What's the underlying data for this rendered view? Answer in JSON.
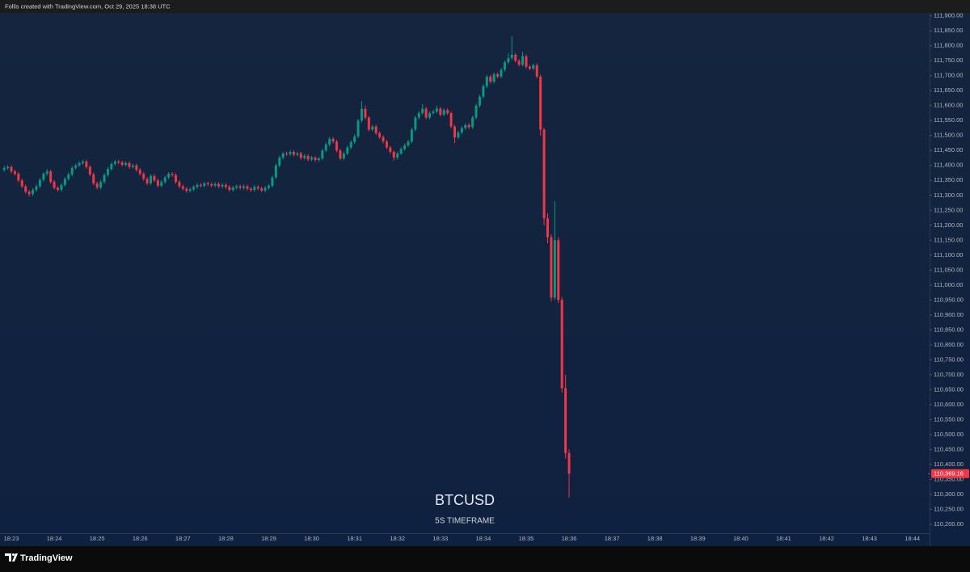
{
  "chart_data": {
    "type": "candlestick",
    "title": "Follis created with TradingView.com, Oct 29, 2025 18:38 UTC",
    "symbol": "BTCUSD",
    "subtitle": "5S TIMEFRAME",
    "brand": "TradingView",
    "up_color": "#089981",
    "down_color": "#f23645",
    "grid": false,
    "ylim": [
      110170,
      111910
    ],
    "yticks": [
      {
        "value": 110200,
        "label": "110,200.00"
      },
      {
        "value": 110250,
        "label": "110,250.00"
      },
      {
        "value": 110300,
        "label": "110,300.00"
      },
      {
        "value": 110350,
        "label": "110,350.00"
      },
      {
        "value": 110400,
        "label": "110,400.00"
      },
      {
        "value": 110450,
        "label": "110,450.00"
      },
      {
        "value": 110500,
        "label": "110,500.00"
      },
      {
        "value": 110550,
        "label": "110,550.00"
      },
      {
        "value": 110600,
        "label": "110,600.00"
      },
      {
        "value": 110650,
        "label": "110,650.00"
      },
      {
        "value": 110700,
        "label": "110,700.00"
      },
      {
        "value": 110750,
        "label": "110,750.00"
      },
      {
        "value": 110800,
        "label": "110,800.00"
      },
      {
        "value": 110850,
        "label": "110,850.00"
      },
      {
        "value": 110900,
        "label": "110,900.00"
      },
      {
        "value": 110950,
        "label": "110,950.00"
      },
      {
        "value": 111000,
        "label": "111,000.00"
      },
      {
        "value": 111050,
        "label": "111,050.00"
      },
      {
        "value": 111100,
        "label": "111,100.00"
      },
      {
        "value": 111150,
        "label": "111,150.00"
      },
      {
        "value": 111200,
        "label": "111,200.00"
      },
      {
        "value": 111250,
        "label": "111,250.00"
      },
      {
        "value": 111300,
        "label": "111,300.00"
      },
      {
        "value": 111350,
        "label": "111,350.00"
      },
      {
        "value": 111400,
        "label": "111,400.00"
      },
      {
        "value": 111450,
        "label": "111,450.00"
      },
      {
        "value": 111500,
        "label": "111,500.00"
      },
      {
        "value": 111550,
        "label": "111,550.00"
      },
      {
        "value": 111600,
        "label": "111,600.00"
      },
      {
        "value": 111650,
        "label": "111,650.00"
      },
      {
        "value": 111700,
        "label": "111,700.00"
      },
      {
        "value": 111750,
        "label": "111,750.00"
      },
      {
        "value": 111800,
        "label": "111,800.00"
      },
      {
        "value": 111850,
        "label": "111,850.00"
      },
      {
        "value": 111900,
        "label": "111,900.00"
      }
    ],
    "x_labels": [
      "18:23",
      "18:24",
      "18:25",
      "18:26",
      "18:27",
      "18:28",
      "18:29",
      "18:30",
      "18:31",
      "18:32",
      "18:33",
      "18:34",
      "18:35",
      "18:36",
      "18:37",
      "18:38",
      "18:39",
      "18:40",
      "18:41",
      "18:42",
      "18:43",
      "18:44"
    ],
    "last_price": {
      "value": 110369.16,
      "label": "110,369.16"
    },
    "ohlc": [
      [
        111385,
        111399,
        111379,
        111391
      ],
      [
        111391,
        111401,
        111386,
        111395
      ],
      [
        111395,
        111400,
        111374,
        111380
      ],
      [
        111380,
        111386,
        111366,
        111372
      ],
      [
        111372,
        111378,
        111344,
        111350
      ],
      [
        111350,
        111356,
        111324,
        111330
      ],
      [
        111330,
        111336,
        111306,
        111312
      ],
      [
        111312,
        111318,
        111296,
        111304
      ],
      [
        111304,
        111324,
        111298,
        111318
      ],
      [
        111318,
        111336,
        111312,
        111330
      ],
      [
        111330,
        111358,
        111324,
        111352
      ],
      [
        111352,
        111378,
        111346,
        111372
      ],
      [
        111372,
        111388,
        111366,
        111380
      ],
      [
        111380,
        111386,
        111339,
        111345
      ],
      [
        111345,
        111351,
        111319,
        111325
      ],
      [
        111325,
        111331,
        111312,
        111318
      ],
      [
        111318,
        111341,
        111312,
        111335
      ],
      [
        111335,
        111361,
        111329,
        111355
      ],
      [
        111355,
        111376,
        111349,
        111370
      ],
      [
        111370,
        111398,
        111364,
        111392
      ],
      [
        111392,
        111406,
        111386,
        111400
      ],
      [
        111400,
        111414,
        111394,
        111408
      ],
      [
        111408,
        111419,
        111402,
        111413
      ],
      [
        111413,
        111419,
        111389,
        111395
      ],
      [
        111395,
        111401,
        111364,
        111370
      ],
      [
        111370,
        111376,
        111334,
        111340
      ],
      [
        111340,
        111346,
        111320,
        111326
      ],
      [
        111326,
        111351,
        111320,
        111345
      ],
      [
        111345,
        111374,
        111339,
        111368
      ],
      [
        111368,
        111394,
        111362,
        111388
      ],
      [
        111388,
        111411,
        111382,
        111405
      ],
      [
        111405,
        111419,
        111399,
        111413
      ],
      [
        111413,
        111419,
        111404,
        111410
      ],
      [
        111410,
        111416,
        111396,
        111402
      ],
      [
        111402,
        111414,
        111396,
        111408
      ],
      [
        111408,
        111414,
        111389,
        111395
      ],
      [
        111395,
        111406,
        111389,
        111400
      ],
      [
        111400,
        111406,
        111379,
        111385
      ],
      [
        111385,
        111391,
        111366,
        111372
      ],
      [
        111372,
        111378,
        111349,
        111355
      ],
      [
        111355,
        111361,
        111334,
        111340
      ],
      [
        111340,
        111371,
        111334,
        111365
      ],
      [
        111365,
        111371,
        111344,
        111350
      ],
      [
        111350,
        111356,
        111326,
        111332
      ],
      [
        111332,
        111351,
        111326,
        111345
      ],
      [
        111345,
        111366,
        111339,
        111360
      ],
      [
        111360,
        111378,
        111354,
        111372
      ],
      [
        111372,
        111378,
        111362,
        111368
      ],
      [
        111368,
        111374,
        111339,
        111345
      ],
      [
        111345,
        111351,
        111324,
        111330
      ],
      [
        111330,
        111336,
        111316,
        111322
      ],
      [
        111322,
        111328,
        111309,
        111315
      ],
      [
        111315,
        111326,
        111309,
        111320
      ],
      [
        111320,
        111334,
        111314,
        111328
      ],
      [
        111328,
        111341,
        111322,
        111335
      ],
      [
        111335,
        111341,
        111326,
        111332
      ],
      [
        111332,
        111346,
        111326,
        111340
      ],
      [
        111340,
        111346,
        111331,
        111337
      ],
      [
        111337,
        111343,
        111327,
        111333
      ],
      [
        111333,
        111344,
        111327,
        111338
      ],
      [
        111338,
        111344,
        111324,
        111330
      ],
      [
        111330,
        111341,
        111324,
        111335
      ],
      [
        111335,
        111341,
        111322,
        111328
      ],
      [
        111328,
        111334,
        111312,
        111318
      ],
      [
        111318,
        111332,
        111312,
        111326
      ],
      [
        111326,
        111336,
        111320,
        111330
      ],
      [
        111330,
        111336,
        111319,
        111325
      ],
      [
        111325,
        111336,
        111319,
        111330
      ],
      [
        111330,
        111336,
        111316,
        111322
      ],
      [
        111322,
        111328,
        111312,
        111318
      ],
      [
        111318,
        111334,
        111312,
        111328
      ],
      [
        111328,
        111334,
        111317,
        111323
      ],
      [
        111323,
        111329,
        111310,
        111316
      ],
      [
        111316,
        111331,
        111310,
        111325
      ],
      [
        111325,
        111338,
        111319,
        111332
      ],
      [
        111332,
        111366,
        111326,
        111360
      ],
      [
        111360,
        111406,
        111354,
        111400
      ],
      [
        111400,
        111432,
        111394,
        111426
      ],
      [
        111426,
        111446,
        111420,
        111440
      ],
      [
        111440,
        111446,
        111432,
        111438
      ],
      [
        111438,
        111451,
        111432,
        111445
      ],
      [
        111445,
        111451,
        111430,
        111436
      ],
      [
        111436,
        111446,
        111430,
        111440
      ],
      [
        111440,
        111446,
        111419,
        111425
      ],
      [
        111425,
        111438,
        111419,
        111432
      ],
      [
        111432,
        111438,
        111414,
        111420
      ],
      [
        111420,
        111432,
        111414,
        111426
      ],
      [
        111426,
        111432,
        111412,
        111418
      ],
      [
        111418,
        111429,
        111412,
        111423
      ],
      [
        111423,
        111456,
        111417,
        111450
      ],
      [
        111450,
        111476,
        111444,
        111470
      ],
      [
        111470,
        111495,
        111464,
        111489
      ],
      [
        111489,
        111495,
        111474,
        111480
      ],
      [
        111480,
        111486,
        111444,
        111450
      ],
      [
        111450,
        111456,
        111417,
        111423
      ],
      [
        111423,
        111446,
        111417,
        111440
      ],
      [
        111440,
        111466,
        111434,
        111460
      ],
      [
        111460,
        111484,
        111454,
        111478
      ],
      [
        111478,
        111503,
        111472,
        111497
      ],
      [
        111497,
        111556,
        111491,
        111550
      ],
      [
        111550,
        111615,
        111544,
        111589
      ],
      [
        111589,
        111600,
        111554,
        111560
      ],
      [
        111560,
        111566,
        111514,
        111520
      ],
      [
        111520,
        111536,
        111514,
        111530
      ],
      [
        111530,
        111536,
        111502,
        111508
      ],
      [
        111508,
        111514,
        111489,
        111495
      ],
      [
        111495,
        111501,
        111474,
        111480
      ],
      [
        111480,
        111486,
        111454,
        111460
      ],
      [
        111460,
        111466,
        111439,
        111445
      ],
      [
        111445,
        111451,
        111415,
        111426
      ],
      [
        111426,
        111446,
        111420,
        111440
      ],
      [
        111440,
        111461,
        111434,
        111455
      ],
      [
        111455,
        111473,
        111449,
        111467
      ],
      [
        111467,
        111486,
        111461,
        111480
      ],
      [
        111480,
        111526,
        111474,
        111520
      ],
      [
        111520,
        111566,
        111514,
        111560
      ],
      [
        111560,
        111581,
        111554,
        111575
      ],
      [
        111575,
        111605,
        111569,
        111590
      ],
      [
        111590,
        111596,
        111554,
        111560
      ],
      [
        111560,
        111581,
        111554,
        111575
      ],
      [
        111575,
        111586,
        111569,
        111580
      ],
      [
        111580,
        111600,
        111574,
        111590
      ],
      [
        111590,
        111596,
        111564,
        111570
      ],
      [
        111570,
        111591,
        111564,
        111585
      ],
      [
        111585,
        111591,
        111569,
        111575
      ],
      [
        111575,
        111581,
        111524,
        111530
      ],
      [
        111530,
        111536,
        111475,
        111494
      ],
      [
        111494,
        111516,
        111488,
        111510
      ],
      [
        111510,
        111531,
        111504,
        111525
      ],
      [
        111525,
        111541,
        111519,
        111535
      ],
      [
        111535,
        111541,
        111522,
        111528
      ],
      [
        111528,
        111566,
        111522,
        111560
      ],
      [
        111560,
        111606,
        111554,
        111600
      ],
      [
        111600,
        111636,
        111594,
        111630
      ],
      [
        111630,
        111671,
        111624,
        111665
      ],
      [
        111665,
        111703,
        111659,
        111697
      ],
      [
        111697,
        111703,
        111674,
        111680
      ],
      [
        111680,
        111711,
        111674,
        111705
      ],
      [
        111705,
        111711,
        111691,
        111697
      ],
      [
        111697,
        111726,
        111691,
        111720
      ],
      [
        111720,
        111751,
        111714,
        111745
      ],
      [
        111745,
        111775,
        111739,
        111759
      ],
      [
        111759,
        111832,
        111753,
        111770
      ],
      [
        111770,
        111776,
        111744,
        111750
      ],
      [
        111750,
        111756,
        111731,
        111737
      ],
      [
        111737,
        111780,
        111731,
        111765
      ],
      [
        111765,
        111771,
        111724,
        111730
      ],
      [
        111730,
        111736,
        111718,
        111724
      ],
      [
        111724,
        111741,
        111718,
        111735
      ],
      [
        111735,
        111741,
        111691,
        111697
      ],
      [
        111697,
        111703,
        111500,
        111520
      ],
      [
        111520,
        111526,
        111200,
        111223
      ],
      [
        111223,
        111240,
        111140,
        111160
      ],
      [
        111160,
        111170,
        110945,
        110958
      ],
      [
        110958,
        111280,
        110950,
        111150
      ],
      [
        111150,
        111160,
        110940,
        110950
      ],
      [
        110950,
        110960,
        110640,
        110655
      ],
      [
        110655,
        110700,
        110420,
        110438
      ],
      [
        110438,
        110450,
        110289,
        110369.16
      ]
    ]
  }
}
